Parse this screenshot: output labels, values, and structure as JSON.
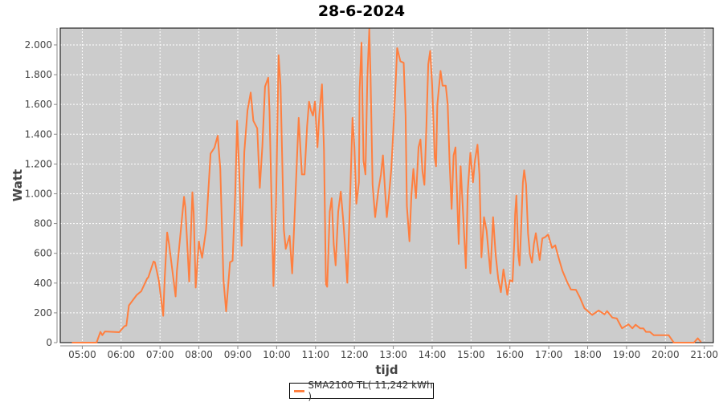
{
  "chart_data": {
    "type": "line",
    "title": "28-6-2024",
    "xlabel": "tijd",
    "ylabel": "Watt",
    "xlim": [
      "04:26",
      "21:14"
    ],
    "ylim": [
      0,
      2113
    ],
    "x_ticks": [
      "05:00",
      "06:00",
      "07:00",
      "08:00",
      "09:00",
      "10:00",
      "11:00",
      "12:00",
      "13:00",
      "14:00",
      "15:00",
      "16:00",
      "17:00",
      "18:00",
      "19:00",
      "20:00",
      "21:00"
    ],
    "y_ticks": [
      0,
      200,
      400,
      600,
      800,
      1000,
      1200,
      1400,
      1600,
      1800,
      2000
    ],
    "y_tick_labels": [
      "0",
      "200",
      "400",
      "600",
      "800",
      "1.000",
      "1.200",
      "1.400",
      "1.600",
      "1.800",
      "2.000"
    ],
    "grid": true,
    "legend_position": "bottom",
    "colors": {
      "plot_background": "#cccccc",
      "grid": "#ffffff",
      "series": "#ff7f3f"
    },
    "series": [
      {
        "name": "SMA2100 TL( 11,242 kWh )",
        "x": [
          "04:44",
          "05:22",
          "05:28",
          "05:31",
          "05:35",
          "05:57",
          "06:05",
          "06:08",
          "06:12",
          "06:24",
          "06:31",
          "06:40",
          "06:42",
          "06:50",
          "06:52",
          "06:58",
          "07:05",
          "07:07",
          "07:11",
          "07:14",
          "07:24",
          "07:26",
          "07:32",
          "07:37",
          "07:39",
          "07:45",
          "07:50",
          "07:52",
          "07:55",
          "08:00",
          "08:01",
          "08:05",
          "08:11",
          "08:18",
          "08:24",
          "08:29",
          "08:33",
          "08:38",
          "08:42",
          "08:48",
          "08:52",
          "08:56",
          "08:59",
          "09:03",
          "09:06",
          "09:10",
          "09:15",
          "09:20",
          "09:24",
          "09:30",
          "09:34",
          "09:38",
          "09:42",
          "09:47",
          "09:49",
          "09:55",
          "09:59",
          "10:03",
          "10:06",
          "10:11",
          "10:14",
          "10:20",
          "10:24",
          "10:30",
          "10:34",
          "10:39",
          "10:43",
          "10:47",
          "10:50",
          "10:53",
          "10:56",
          "10:59",
          "11:03",
          "11:06",
          "11:10",
          "11:13",
          "11:16",
          "11:18",
          "11:22",
          "11:25",
          "11:28",
          "11:31",
          "11:35",
          "11:39",
          "11:43",
          "11:47",
          "11:49",
          "11:52",
          "11:54",
          "11:57",
          "12:00",
          "12:03",
          "12:07",
          "12:08",
          "12:11",
          "12:14",
          "12:17",
          "12:20",
          "12:23",
          "12:25",
          "12:28",
          "12:32",
          "12:37",
          "12:41",
          "12:44",
          "12:47",
          "12:50",
          "12:53",
          "12:57",
          "13:01",
          "13:04",
          "13:06",
          "13:11",
          "13:16",
          "13:19",
          "13:21",
          "13:25",
          "13:28",
          "13:31",
          "13:35",
          "13:39",
          "13:42",
          "13:45",
          "13:48",
          "13:51",
          "13:54",
          "13:57",
          "14:00",
          "14:04",
          "14:06",
          "14:08",
          "14:13",
          "14:16",
          "14:21",
          "14:24",
          "14:27",
          "14:30",
          "14:33",
          "14:36",
          "14:39",
          "14:41",
          "14:44",
          "14:48",
          "14:52",
          "14:55",
          "14:59",
          "15:03",
          "15:06",
          "15:10",
          "15:13",
          "15:16",
          "15:20",
          "15:24",
          "15:27",
          "15:30",
          "15:34",
          "15:38",
          "15:42",
          "15:46",
          "15:50",
          "15:53",
          "15:56",
          "16:00",
          "16:04",
          "16:07",
          "16:08",
          "16:10",
          "16:13",
          "16:15",
          "16:17",
          "16:20",
          "16:22",
          "16:25",
          "16:28",
          "16:31",
          "16:34",
          "16:37",
          "16:40",
          "16:43",
          "16:46",
          "16:50",
          "16:54",
          "16:59",
          "17:05",
          "17:10",
          "17:15",
          "17:21",
          "17:28",
          "17:34",
          "17:42",
          "17:48",
          "17:55",
          "18:07",
          "18:17",
          "18:26",
          "18:30",
          "18:38",
          "18:45",
          "18:53",
          "19:03",
          "19:09",
          "19:14",
          "19:21",
          "19:26",
          "19:30",
          "19:36",
          "19:42",
          "20:05",
          "20:13",
          "20:44",
          "20:50",
          "20:55"
        ],
        "y": [
          0,
          0,
          72,
          50,
          75,
          70,
          110,
          115,
          250,
          320,
          345,
          430,
          440,
          545,
          540,
          420,
          180,
          420,
          740,
          660,
          310,
          480,
          750,
          980,
          910,
          410,
          1010,
          870,
          370,
          680,
          650,
          570,
          760,
          1270,
          1310,
          1390,
          1170,
          420,
          210,
          540,
          550,
          1000,
          1490,
          1060,
          650,
          1280,
          1560,
          1680,
          1490,
          1440,
          1040,
          1320,
          1720,
          1780,
          1550,
          380,
          920,
          1930,
          1730,
          760,
          630,
          717,
          465,
          1096,
          1510,
          1130,
          1130,
          1455,
          1618,
          1560,
          1525,
          1618,
          1312,
          1540,
          1735,
          1293,
          393,
          375,
          880,
          970,
          663,
          519,
          880,
          1015,
          807,
          555,
          402,
          790,
          1060,
          1510,
          1312,
          933,
          1077,
          1690,
          2015,
          1222,
          1130,
          1780,
          2105,
          1780,
          1060,
          843,
          1023,
          1130,
          1258,
          1040,
          843,
          970,
          1167,
          1510,
          1780,
          1978,
          1890,
          1880,
          1525,
          917,
          681,
          990,
          1167,
          970,
          1312,
          1365,
          1150,
          1060,
          1437,
          1870,
          1960,
          1726,
          1240,
          1185,
          1600,
          1825,
          1726,
          1726,
          1600,
          1203,
          898,
          1258,
          1312,
          917,
          663,
          1185,
          843,
          501,
          1023,
          1275,
          1077,
          1222,
          1330,
          1130,
          573,
          843,
          753,
          609,
          465,
          843,
          591,
          429,
          339,
          492,
          411,
          321,
          420,
          411,
          699,
          861,
          988,
          591,
          519,
          735,
          1077,
          1158,
          1060,
          735,
          591,
          537,
          663,
          735,
          645,
          555,
          700,
          708,
          726,
          636,
          654,
          573,
          483,
          411,
          357,
          354,
          303,
          231,
          186,
          216,
          190,
          212,
          168,
          162,
          96,
          123,
          96,
          120,
          96,
          96,
          72,
          72,
          50,
          50,
          0,
          0,
          29,
          3
        ]
      }
    ]
  }
}
